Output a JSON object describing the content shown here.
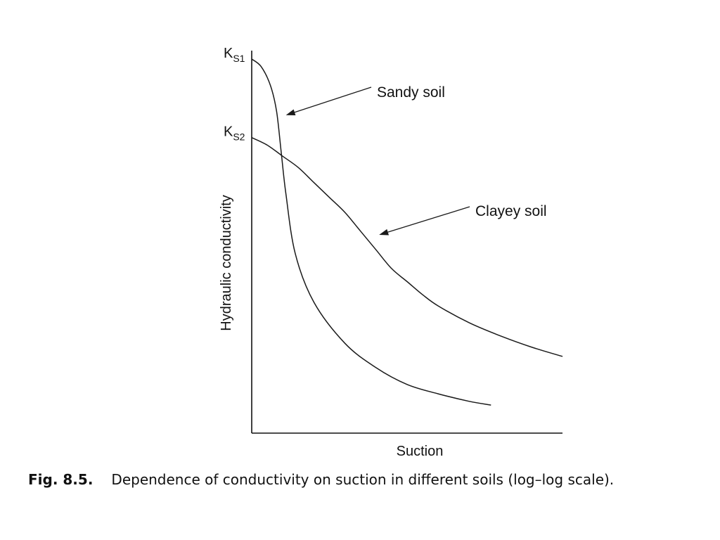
{
  "chart_data": {
    "type": "line",
    "scale": "log-log",
    "xlabel": "Suction",
    "ylabel": "Hydraulic conductivity",
    "x_ticks": [],
    "y_ticks": [
      {
        "label": "K",
        "subscript": "S1"
      },
      {
        "label": "K",
        "subscript": "S2"
      }
    ],
    "x_range": [
      0,
      100
    ],
    "y_range": [
      0,
      100
    ],
    "grid": false,
    "legend": "none",
    "series": [
      {
        "name": "Sandy soil",
        "annotation_at": [
          11,
          85
        ],
        "points": [
          [
            0,
            100
          ],
          [
            3,
            98
          ],
          [
            6,
            93
          ],
          [
            8,
            86
          ],
          [
            9.5,
            75
          ],
          [
            11,
            64
          ],
          [
            14,
            48
          ],
          [
            20,
            35
          ],
          [
            30,
            24
          ],
          [
            40,
            17.5
          ],
          [
            50,
            13
          ],
          [
            60,
            10.5
          ],
          [
            70,
            8.5
          ],
          [
            77,
            7.5
          ]
        ]
      },
      {
        "name": "Clayey soil",
        "annotation_at": [
          41,
          53
        ],
        "points": [
          [
            0,
            79
          ],
          [
            5,
            77
          ],
          [
            10,
            74
          ],
          [
            15,
            71
          ],
          [
            20,
            67
          ],
          [
            25,
            63
          ],
          [
            30,
            59
          ],
          [
            35,
            54
          ],
          [
            40,
            49
          ],
          [
            45,
            44
          ],
          [
            50,
            40.5
          ],
          [
            55,
            37
          ],
          [
            60,
            34
          ],
          [
            70,
            29.5
          ],
          [
            80,
            26
          ],
          [
            90,
            23
          ],
          [
            100,
            20.5
          ]
        ]
      }
    ]
  },
  "caption": {
    "figure_number": "Fig. 8.5.",
    "text": "Dependence of conductivity on suction in different soils (log–log scale)."
  }
}
